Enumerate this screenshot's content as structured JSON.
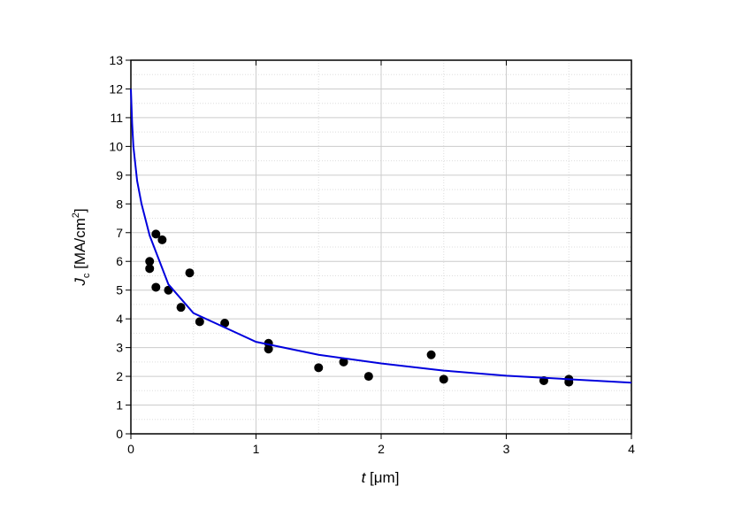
{
  "chart_data": {
    "type": "scatter",
    "xlabel": [
      "t",
      " [μm]"
    ],
    "ylabel": [
      "J",
      "c",
      " [MA/cm",
      "2",
      "]"
    ],
    "xlim": [
      0,
      4
    ],
    "xticks": [
      0,
      1,
      2,
      3,
      4
    ],
    "ylim": [
      0,
      13
    ],
    "yticks": [
      0,
      1,
      2,
      3,
      4,
      5,
      6,
      7,
      8,
      9,
      10,
      11,
      12,
      13
    ],
    "grid": true,
    "series": [
      {
        "style": "marker",
        "color": "#000000",
        "x": [
          0.15,
          0.15,
          0.2,
          0.25,
          0.2,
          0.3,
          0.47,
          0.4,
          0.55,
          0.75,
          1.1,
          1.1,
          1.5,
          1.7,
          1.9,
          2.4,
          2.5,
          3.3,
          3.5,
          3.5
        ],
        "values": [
          6.0,
          5.75,
          6.95,
          6.75,
          5.1,
          5.0,
          5.6,
          4.4,
          3.9,
          3.85,
          3.15,
          2.95,
          2.3,
          2.5,
          2.0,
          2.75,
          1.9,
          1.85,
          1.9,
          1.8
        ]
      },
      {
        "style": "line",
        "color": "#0000dd",
        "x": [
          0,
          0.01,
          0.02,
          0.05,
          0.085,
          0.15,
          0.3,
          0.5,
          0.75,
          1,
          1.5,
          2,
          2.5,
          3,
          3.5,
          4
        ],
        "values": [
          12,
          10.8,
          10,
          8.8,
          8,
          6.9,
          5.2,
          4.2,
          3.7,
          3.2,
          2.75,
          2.45,
          2.2,
          2.02,
          1.9,
          1.78
        ]
      }
    ]
  }
}
